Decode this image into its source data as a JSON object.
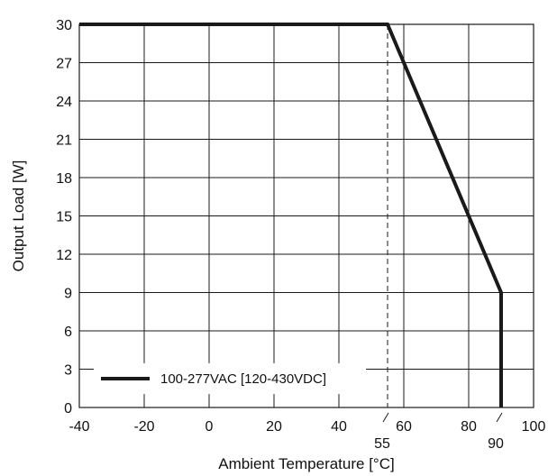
{
  "chart_data": {
    "type": "line",
    "xlabel": "Ambient Temperature [°C]",
    "ylabel": "Output Load [W]",
    "xlim": [
      -40,
      100
    ],
    "ylim": [
      0,
      30
    ],
    "x_ticks": [
      -40,
      -20,
      0,
      20,
      40,
      60,
      80,
      100
    ],
    "y_ticks": [
      0,
      3,
      6,
      9,
      12,
      15,
      18,
      21,
      24,
      27,
      30
    ],
    "x_gridlines": [
      -40,
      -20,
      0,
      20,
      40,
      60,
      80,
      100
    ],
    "grid": true,
    "marker_ticks": [
      {
        "x": 55,
        "label": "55"
      },
      {
        "x": 90,
        "label": "90"
      }
    ],
    "reference_line": {
      "x": 55,
      "style": "dashed"
    },
    "series": [
      {
        "name": "100-277VAC [120-430VDC]",
        "color": "#1a1a1a",
        "points": [
          [
            -40,
            30
          ],
          [
            55,
            30
          ],
          [
            90,
            9
          ],
          [
            90,
            0
          ]
        ]
      }
    ],
    "legend_position": "bottom-left"
  }
}
